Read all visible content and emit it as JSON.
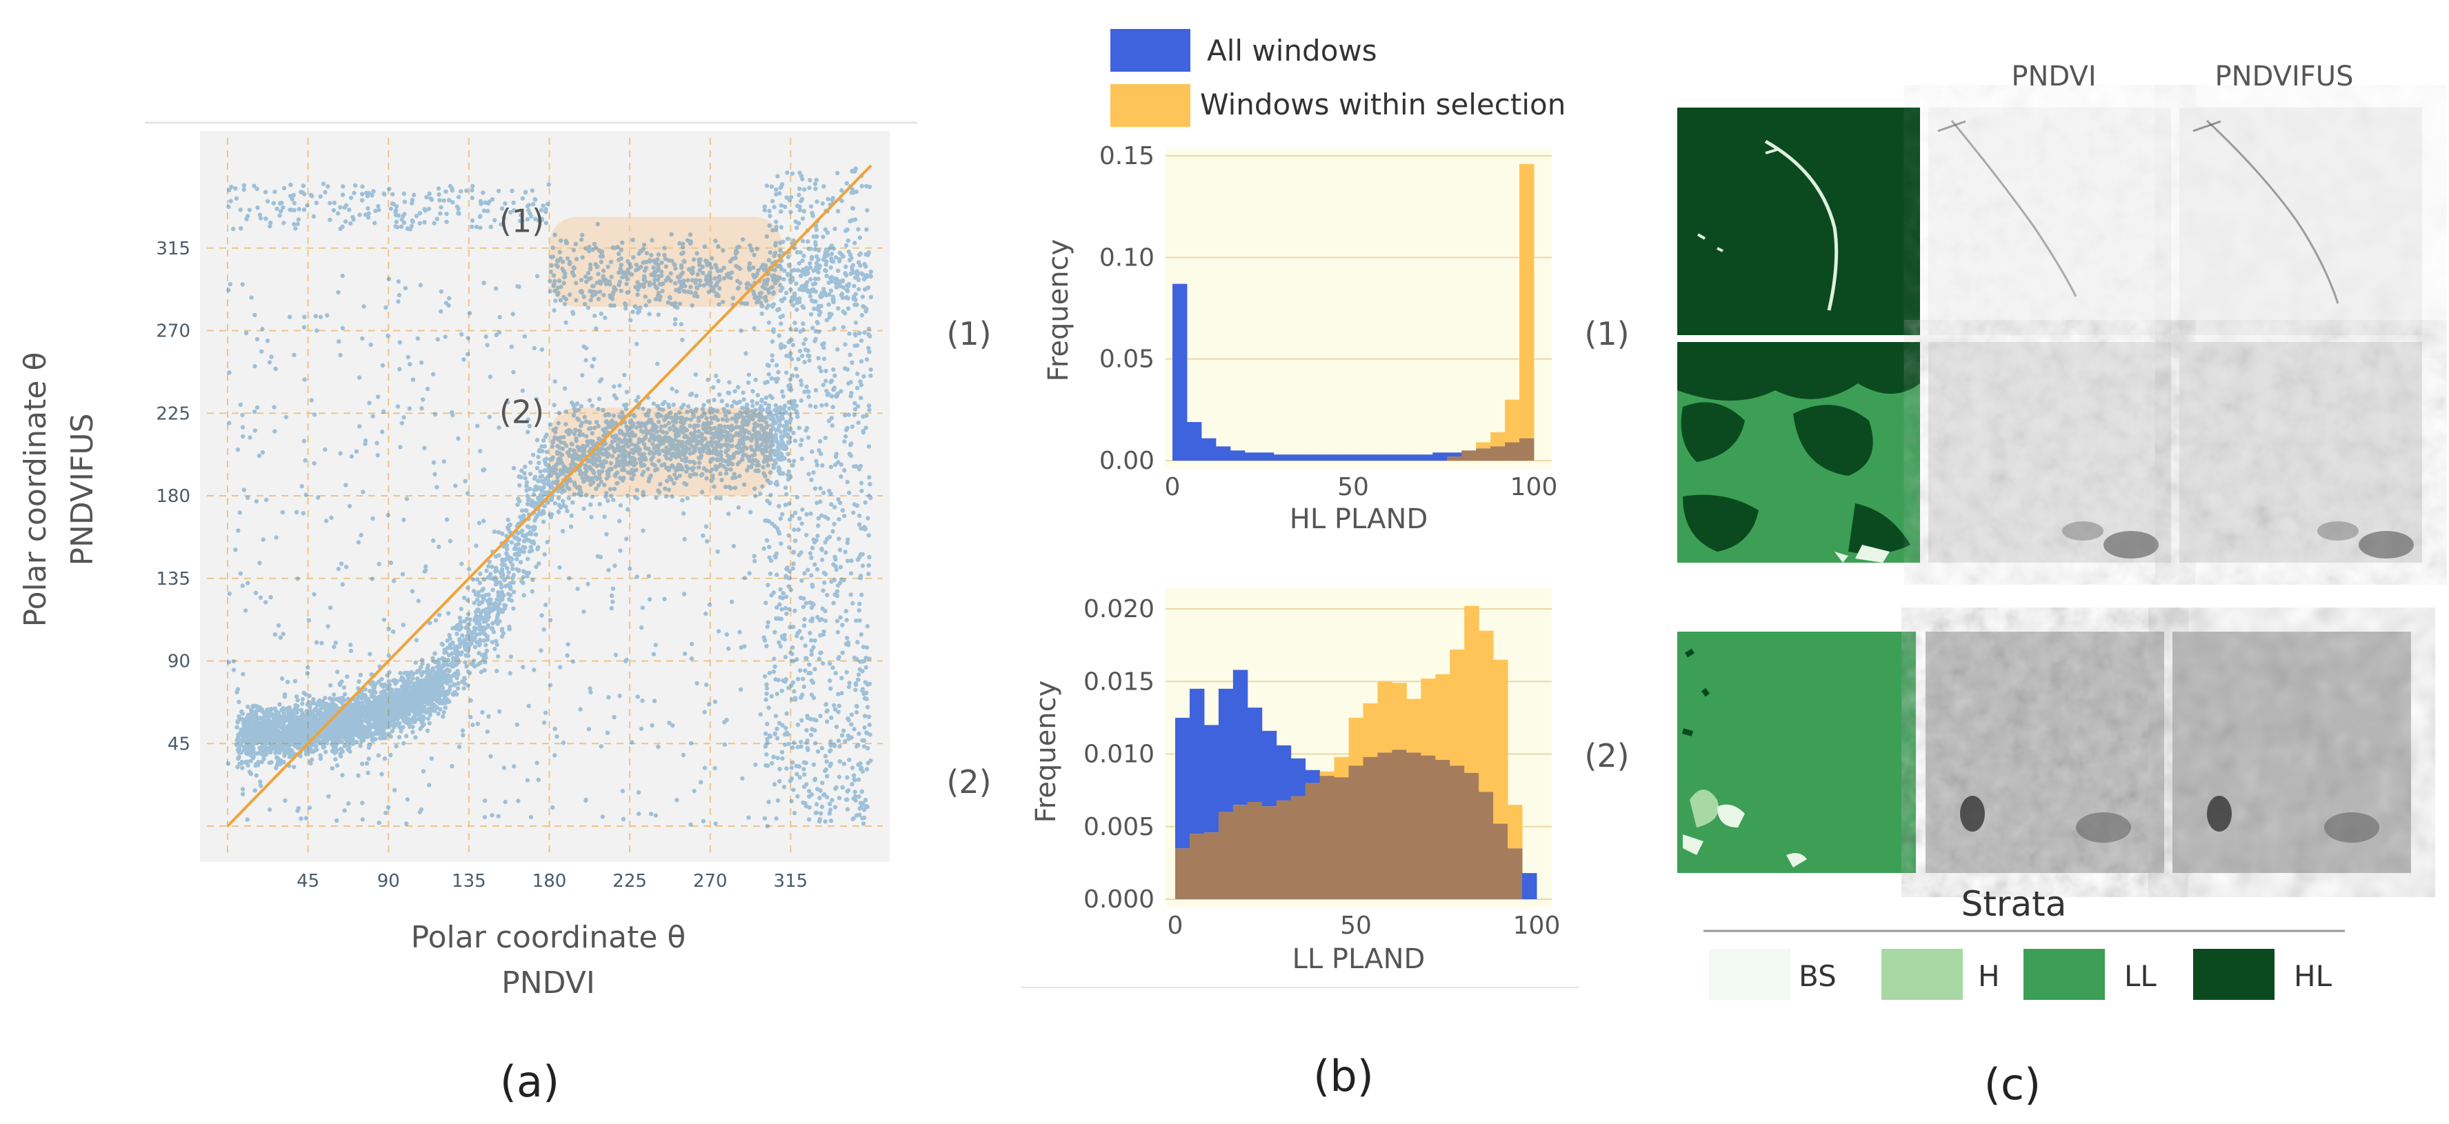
{
  "panel_a": {
    "label": "(a)",
    "selection_labels": [
      "(1)",
      "(2)"
    ]
  },
  "panel_b": {
    "label": "(b)",
    "row_labels": [
      "(1)",
      "(2)"
    ]
  },
  "panel_c": {
    "label": "(c)",
    "row_labels": [
      "(1)",
      "(2)"
    ],
    "col_headers": [
      "PNDVI",
      "PNDVIFUS"
    ],
    "strata_title": "Strata",
    "strata": [
      {
        "code": "BS",
        "color": "#f2f8f2"
      },
      {
        "code": "H",
        "color": "#a8d8a4"
      },
      {
        "code": "LL",
        "color": "#3c9f55"
      },
      {
        "code": "HL",
        "color": "#0b4a1f"
      }
    ]
  },
  "colors": {
    "scatter": "#2c7bb6",
    "diagonal": "#f0a33a",
    "all_windows": "#3f63dd",
    "selection": "#ffc457",
    "overlap": "#a57d5c",
    "grid": "#ebc58a",
    "plot_bg_a": "#f2f2f2",
    "plot_bg_b": "#fdfce8"
  },
  "chart_data": [
    {
      "type": "scatter",
      "xlabel": "Polar coordinate  θ",
      "xlabel2": "PNDVI",
      "ylabel": "Polar coordinate  θ",
      "ylabel2": "PNDVIFUS",
      "xlim": [
        0,
        360
      ],
      "ylim": [
        0,
        360
      ],
      "xticks": [
        "45",
        "90",
        "135",
        "180",
        "225",
        "270",
        "315"
      ],
      "yticks": [
        "45",
        "90",
        "135",
        "180",
        "225",
        "270",
        "315"
      ],
      "diagonal": [
        [
          0,
          0
        ],
        [
          360,
          360
        ]
      ],
      "selections": [
        {
          "label": "(1)",
          "x": [
            180,
            310
          ],
          "y": [
            283,
            332
          ]
        },
        {
          "label": "(2)",
          "x": [
            180,
            305
          ],
          "y": [
            180,
            228
          ]
        }
      ],
      "trend": [
        [
          0,
          48
        ],
        [
          45,
          52
        ],
        [
          90,
          62
        ],
        [
          120,
          78
        ],
        [
          135,
          100
        ],
        [
          150,
          125
        ],
        [
          165,
          160
        ],
        [
          180,
          190
        ],
        [
          200,
          203
        ],
        [
          225,
          207
        ],
        [
          270,
          210
        ],
        [
          300,
          212
        ],
        [
          320,
          215
        ]
      ]
    },
    {
      "type": "bar",
      "title": "",
      "legend": [
        "All windows",
        "Windows within selection"
      ],
      "xlabel": "HL PLAND",
      "ylabel": "Frequency",
      "xlim": [
        0,
        100
      ],
      "ylim": [
        0,
        0.15
      ],
      "xticks": [
        "0",
        "50",
        "100"
      ],
      "yticks": [
        "0.00",
        "0.05",
        "0.10",
        "0.15"
      ],
      "bin_width": 4,
      "series": [
        {
          "name": "All windows",
          "values": [
            0.087,
            0.019,
            0.011,
            0.007,
            0.005,
            0.004,
            0.004,
            0.003,
            0.003,
            0.003,
            0.003,
            0.003,
            0.003,
            0.003,
            0.003,
            0.003,
            0.003,
            0.003,
            0.004,
            0.004,
            0.005,
            0.006,
            0.007,
            0.009,
            0.011
          ]
        },
        {
          "name": "Windows within selection",
          "values": [
            0,
            0,
            0,
            0,
            0,
            0,
            0,
            0,
            0,
            0,
            0,
            0,
            0,
            0,
            0,
            0,
            0,
            0,
            0,
            0.002,
            0.005,
            0.009,
            0.014,
            0.03,
            0.146
          ]
        }
      ]
    },
    {
      "type": "bar",
      "title": "",
      "xlabel": "LL PLAND",
      "ylabel": "Frequency",
      "xlim": [
        0,
        100
      ],
      "ylim": [
        0,
        0.021
      ],
      "xticks": [
        "0",
        "50",
        "100"
      ],
      "yticks": [
        "0.000",
        "0.005",
        "0.010",
        "0.015",
        "0.020"
      ],
      "bin_width": 4,
      "series": [
        {
          "name": "All windows",
          "values": [
            0.0125,
            0.0145,
            0.012,
            0.0145,
            0.0158,
            0.0132,
            0.0116,
            0.0106,
            0.0097,
            0.0089,
            0.0085,
            0.0084,
            0.0092,
            0.0098,
            0.0101,
            0.0103,
            0.0101,
            0.0099,
            0.0096,
            0.0092,
            0.0087,
            0.0074,
            0.0052,
            0.0035,
            0.0018
          ]
        },
        {
          "name": "Windows within selection",
          "values": [
            0.0035,
            0.0045,
            0.0046,
            0.006,
            0.0065,
            0.0067,
            0.0064,
            0.0068,
            0.0071,
            0.008,
            0.0088,
            0.0098,
            0.0125,
            0.0135,
            0.015,
            0.0149,
            0.0138,
            0.0152,
            0.0155,
            0.0172,
            0.0202,
            0.0185,
            0.0165,
            0.0065,
            0.0
          ]
        }
      ]
    }
  ]
}
